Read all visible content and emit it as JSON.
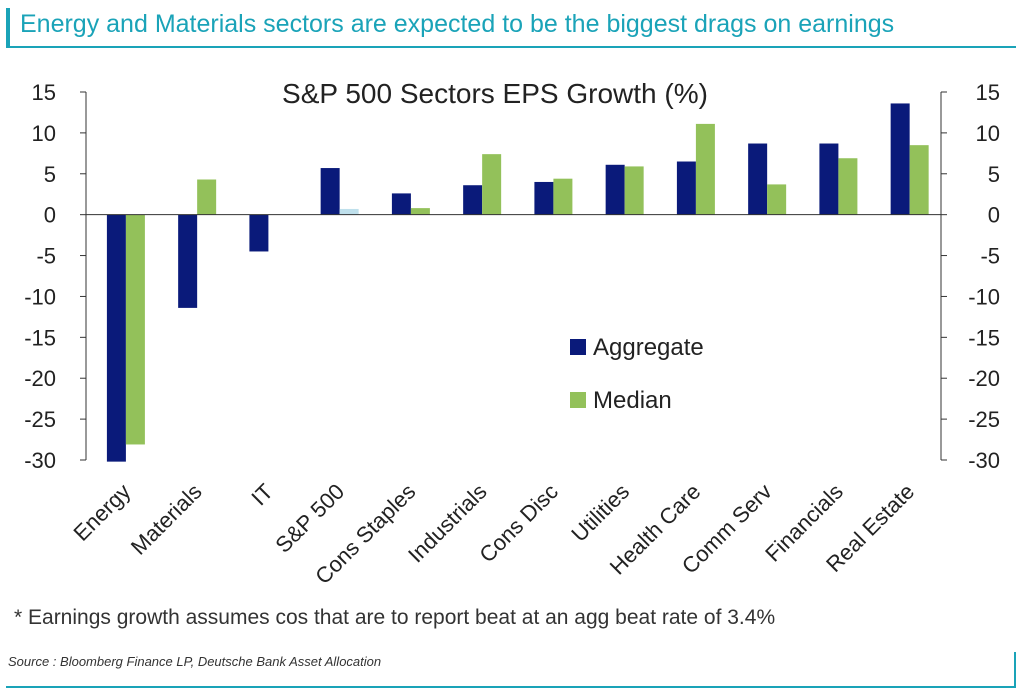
{
  "headline": "Energy and Materials sectors are expected to be the biggest drags on earnings",
  "footnote": "* Earnings growth assumes cos that are to report beat at an agg beat rate of 3.4%",
  "source": "Source : Bloomberg Finance LP, Deutsche Bank Asset Allocation",
  "colors": {
    "accent": "#1aa3b8",
    "aggregate": "#0a1a7a",
    "median": "#93c15a",
    "sp500_median": "#bfe0ec"
  },
  "chart_data": {
    "type": "bar",
    "title": "S&P 500 Sectors EPS Growth (%)",
    "categories": [
      "Energy",
      "Materials",
      "IT",
      "S&P 500",
      "Cons Staples",
      "Industrials",
      "Cons Disc",
      "Utilities",
      "Health Care",
      "Comm Serv",
      "Financials",
      "Real Estate"
    ],
    "series": [
      {
        "name": "Aggregate",
        "values": [
          -30.2,
          -11.4,
          -4.5,
          5.7,
          2.6,
          3.6,
          4.0,
          6.1,
          6.5,
          8.7,
          8.7,
          13.6
        ]
      },
      {
        "name": "Median",
        "values": [
          -28.1,
          4.3,
          0.0,
          0.7,
          0.8,
          7.4,
          4.4,
          5.9,
          11.1,
          3.7,
          6.9,
          8.5
        ]
      }
    ],
    "ylim": [
      -30,
      15
    ],
    "yticks": [
      15,
      10,
      5,
      0,
      -5,
      -10,
      -15,
      -20,
      -25,
      -30
    ],
    "secondary_axis": true,
    "legend": "center-right",
    "grid": false
  }
}
